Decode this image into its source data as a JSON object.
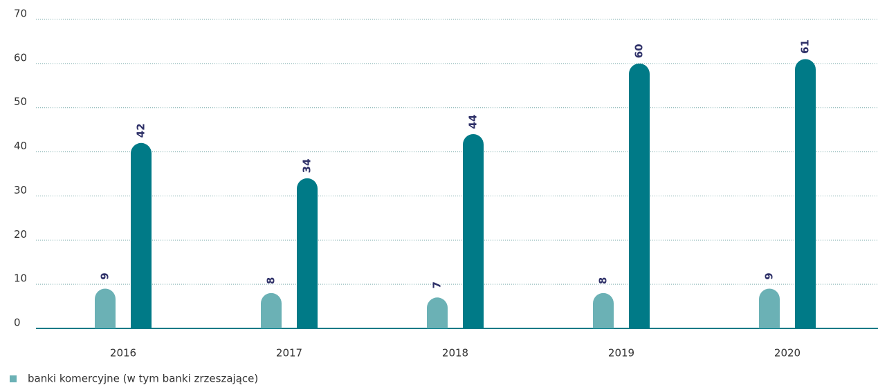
{
  "chart_data": {
    "type": "bar",
    "categories": [
      "2016",
      "2017",
      "2018",
      "2019",
      "2020"
    ],
    "series": [
      {
        "name": "banki komercyjne (w tym banki zrzeszające)",
        "color": "#6bb1b5",
        "values": [
          9,
          8,
          7,
          8,
          9
        ]
      },
      {
        "color": "#007a87",
        "values": [
          42,
          34,
          44,
          60,
          61
        ]
      }
    ],
    "ylim": [
      0,
      70
    ],
    "yticks": [
      0,
      10,
      20,
      30,
      40,
      50,
      60,
      70
    ],
    "grid": true,
    "legend": "bottom-left"
  }
}
